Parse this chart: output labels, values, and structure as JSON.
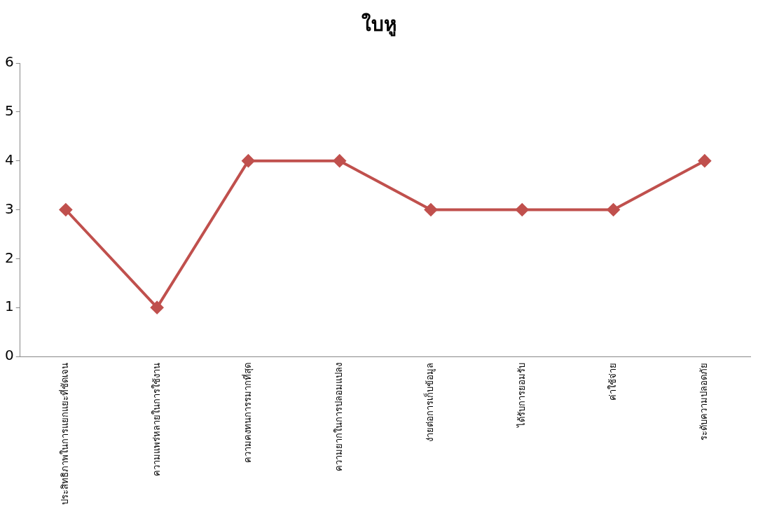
{
  "chart_data": {
    "type": "line",
    "title": "ใบหู",
    "categories": [
      "ประสิทธิภาพในการแยกแยะที่ชัดเจน",
      "ความแพร่หลายในการใช้งาน",
      "ความคงทนการรมากที่สุด",
      "ความยากในการปลอมแปลง",
      "ง่ายต่อการเก็บข้อมูล",
      "ได้รับการยอมรับ",
      "ค่าใช้จ่าย",
      "ระดับความปลอดภัย"
    ],
    "series": [
      {
        "color": "#c0504d",
        "values": [
          3,
          1,
          4,
          4,
          3,
          3,
          3,
          4
        ]
      }
    ],
    "ylim": [
      0,
      6
    ],
    "yticks": [
      0,
      1,
      2,
      3,
      4,
      5,
      6
    ],
    "grid": false,
    "legend": false,
    "marker": "diamond",
    "line_style": "solid"
  }
}
